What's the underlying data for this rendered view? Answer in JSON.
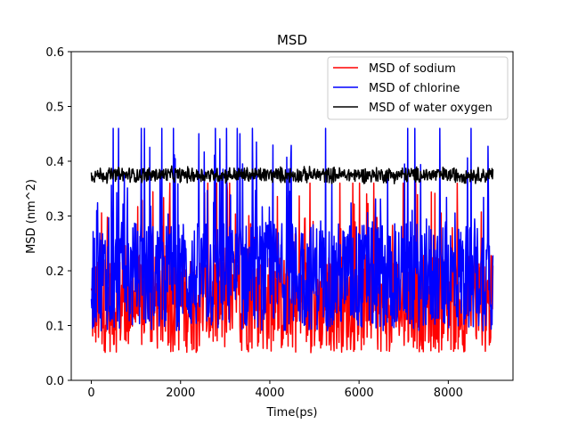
{
  "chart_data": {
    "type": "line",
    "title": "MSD",
    "xlabel": "Time(ps)",
    "ylabel": "MSD (nm^2)",
    "xlim": [
      -450,
      9450
    ],
    "ylim": [
      0.0,
      0.6
    ],
    "xticks": [
      "0",
      "2000",
      "4000",
      "6000",
      "8000"
    ],
    "yticks": [
      "0.0",
      "0.1",
      "0.2",
      "0.3",
      "0.4",
      "0.5",
      "0.6"
    ],
    "legend_position": "top-right",
    "grid": false,
    "series": [
      {
        "name": "MSD of sodium",
        "color": "#ff0000",
        "x_range": [
          0,
          9000
        ],
        "base": 0.14,
        "amplitude": 0.09,
        "min": 0.04,
        "max": 0.36
      },
      {
        "name": "MSD of chlorine",
        "color": "#0000ff",
        "x_range": [
          0,
          9000
        ],
        "base": 0.19,
        "amplitude": 0.1,
        "min": 0.06,
        "max": 0.46
      },
      {
        "name": "MSD of water oxygen",
        "color": "#000000",
        "x_range": [
          0,
          9000
        ],
        "base": 0.375,
        "amplitude": 0.012,
        "min": 0.345,
        "max": 0.405
      }
    ]
  }
}
